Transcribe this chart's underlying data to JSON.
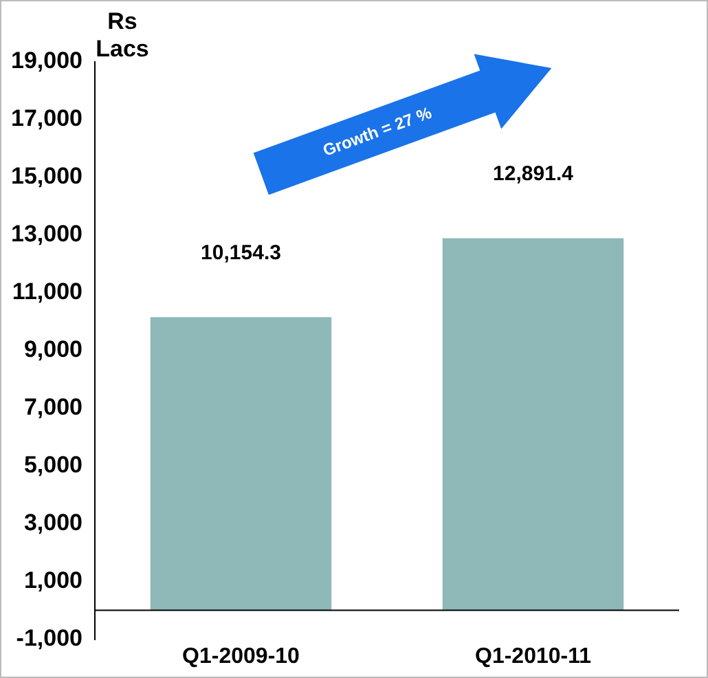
{
  "chart_data": {
    "type": "bar",
    "ylabel": "Rs Lacs",
    "categories": [
      "Q1-2009-10",
      "Q1-2010-11"
    ],
    "values": [
      10154.3,
      12891.4
    ],
    "value_labels": [
      "10,154.3",
      "12,891.4"
    ],
    "color": "#8fb8b8",
    "ylim": [
      -1000,
      19000
    ],
    "yticks": [
      {
        "value": -1000,
        "label": "-1,000"
      },
      {
        "value": 1000,
        "label": "1,000"
      },
      {
        "value": 3000,
        "label": "3,000"
      },
      {
        "value": 5000,
        "label": "5,000"
      },
      {
        "value": 7000,
        "label": "7,000"
      },
      {
        "value": 9000,
        "label": "9,000"
      },
      {
        "value": 11000,
        "label": "11,000"
      },
      {
        "value": 13000,
        "label": "13,000"
      },
      {
        "value": 15000,
        "label": "15,000"
      },
      {
        "value": 17000,
        "label": "17,000"
      },
      {
        "value": 19000,
        "label": "19,000"
      }
    ],
    "grid": false,
    "legend": false,
    "annotations": [
      "Growth = 27 %"
    ]
  }
}
